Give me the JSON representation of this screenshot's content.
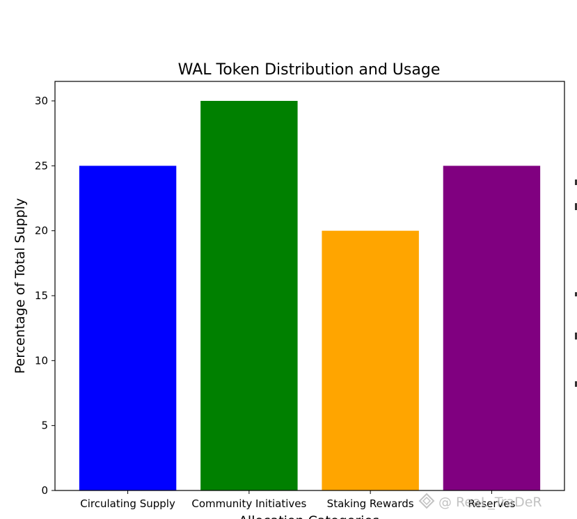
{
  "chart_data": {
    "type": "bar",
    "title": "WAL Token Distribution and Usage",
    "xlabel": "Allocation Categories",
    "ylabel": "Percentage of Total Supply",
    "categories": [
      "Circulating Supply",
      "Community Initiatives",
      "Staking Rewards",
      "Reserves"
    ],
    "values": [
      25,
      30,
      20,
      25
    ],
    "colors": [
      "#0000ff",
      "#008000",
      "#ffa500",
      "#800080"
    ],
    "ylim": [
      0,
      31.5
    ],
    "yticks": [
      0,
      5,
      10,
      15,
      20,
      25,
      30
    ],
    "grid": false,
    "legend": "none"
  },
  "watermark": {
    "text": "@ ReaL_TraDeR",
    "icon": "diamond-logo-icon"
  }
}
